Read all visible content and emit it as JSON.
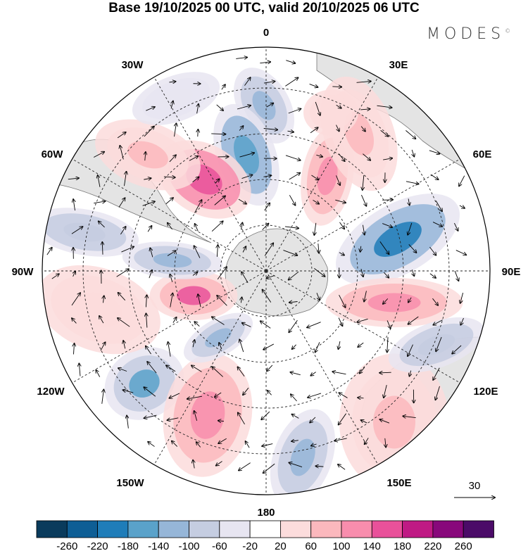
{
  "title": "Base 19/10/2025 00 UTC, valid 20/10/2025 06 UTC",
  "logo": "MODES",
  "logo_mark": "©",
  "longitude_labels": {
    "top": "0",
    "bottom": "180",
    "left": "90W",
    "right": "90E",
    "n30e": "30E",
    "n30w": "30W",
    "n60e": "60E",
    "n60w": "60W",
    "s120e": "120E",
    "s120w": "120W",
    "s150e": "150E",
    "s150w": "150W"
  },
  "reference_vector": {
    "label": "30"
  },
  "colorbar": {
    "colors": [
      "#0a3b5c",
      "#0e5e95",
      "#1f7db9",
      "#5aa2ca",
      "#96b6d8",
      "#c5cde1",
      "#e7e5f1",
      "#ffffff",
      "#fcdcdc",
      "#fbb8bd",
      "#f88dad",
      "#e9519a",
      "#bf1a84",
      "#88087b",
      "#4b0b68"
    ],
    "labels": [
      "-260",
      "-220",
      "-180",
      "-140",
      "-100",
      "-60",
      "-20",
      "20",
      "60",
      "100",
      "140",
      "180",
      "220",
      "260"
    ]
  }
}
